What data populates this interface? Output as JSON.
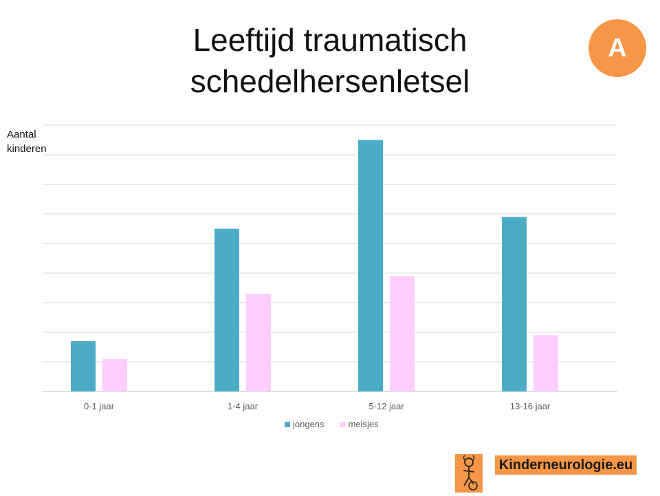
{
  "title_lines": [
    "Leeftijd traumatisch",
    "schedelhersenletsel"
  ],
  "badge": "A",
  "logo": {
    "text": "Kinderneurologie.eu",
    "icon": "child-figure-icon"
  },
  "colors": {
    "jongens": "#4bacc6",
    "meisjes": "#fdcdfd",
    "badge": "#f79646",
    "grid": "#d9d9d9"
  },
  "chart_data": {
    "type": "bar",
    "title": "",
    "ylabel_lines": [
      "Aantal",
      "kinderen"
    ],
    "xlabel": "",
    "categories": [
      "0-1 jaar",
      "1-4 jaar",
      "5-12 jaar",
      "13-16 jaar"
    ],
    "series": [
      {
        "name": "jongens",
        "values": [
          1.7,
          5.5,
          8.5,
          5.9
        ]
      },
      {
        "name": "meisjes",
        "values": [
          1.1,
          3.3,
          3.9,
          1.9
        ]
      }
    ],
    "ylim": [
      0,
      9
    ],
    "y_gridlines": 9,
    "y_tick_labels_shown": false,
    "grid": true,
    "legend": "bottom-center"
  }
}
